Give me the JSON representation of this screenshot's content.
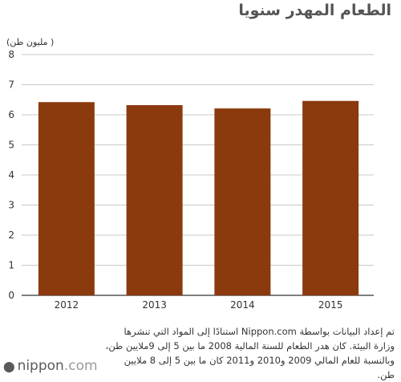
{
  "header": {
    "title": "الطعام المهدر سنويا",
    "unit_label": "(مليون طن )"
  },
  "chart_data": {
    "type": "bar",
    "categories": [
      "2012",
      "2013",
      "2014",
      "2015"
    ],
    "values": [
      6.42,
      6.32,
      6.21,
      6.46
    ],
    "ylim": [
      0,
      8
    ],
    "yticks": [
      0,
      1,
      2,
      3,
      4,
      5,
      6,
      7,
      8
    ],
    "grid": true,
    "bar_color": "#8b3a0e",
    "title": "الطعام المهدر سنويا",
    "ylabel": "(مليون طن )",
    "xlabel": ""
  },
  "footer": {
    "note": "تم إعداد البيانات بواسطة Nippon.com استنادًا إلى المواد التي تنشرها وزارة البيئة. كان هدر الطعام للسنة المالية 2008 ما بين 5 إلى 9ملايين طن، وبالنسبة للعام المالي 2009 و2010 و2011 كان ما بين 5 إلى 8 ملايين طن.",
    "logo_brand": "nippon",
    "logo_tld": ".com"
  }
}
